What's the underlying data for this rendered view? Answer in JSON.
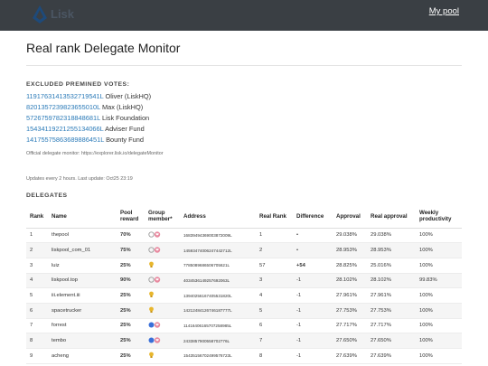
{
  "header": {
    "logo_text": "Lisk",
    "my_pool_label": "My pool"
  },
  "page_title": "Real rank Delegate Monitor",
  "excluded": {
    "heading": "EXCLUDED PREMINED VOTES:",
    "items": [
      {
        "address": "11917631413532719541L",
        "name": "Oliver (LiskHQ)"
      },
      {
        "address": "8201357239823655010L",
        "name": "Max (LiskHQ)"
      },
      {
        "address": "5726759782318848681L",
        "name": "Lisk Foundation"
      },
      {
        "address": "15434119221255134066L",
        "name": "Adviser Fund"
      },
      {
        "address": "14175575863689886451L",
        "name": "Bounty Fund"
      }
    ],
    "monitor_note": "Official delegate monitor: https://explorer.lisk.io/delegateMonitor"
  },
  "update_note": "Updates every 2 hours. Last update: Oct25 23:19",
  "delegates": {
    "heading": "DELEGATES",
    "columns": {
      "rank": "Rank",
      "name": "Name",
      "pool_reward": "Pool reward",
      "group_member": "Group member*",
      "address": "Address",
      "real_rank": "Real Rank",
      "difference": "Difference",
      "approval": "Approval",
      "real_approval": "Real approval",
      "weekly_productivity": "Weekly productivity"
    },
    "rows": [
      {
        "rank": "1",
        "name": "thepool",
        "pool_reward": "70%",
        "group": "ring-heart",
        "address": "16839494369003872009L",
        "real_rank": "1",
        "difference": "•",
        "approval": "29.038%",
        "real_approval": "29.038%",
        "productivity": "100%"
      },
      {
        "rank": "2",
        "name": "liskpool_com_01",
        "pool_reward": "75%",
        "group": "ring-heart",
        "address": "14593474006247442712L",
        "real_rank": "2",
        "difference": "•",
        "approval": "28.953%",
        "real_approval": "28.953%",
        "productivity": "100%"
      },
      {
        "rank": "3",
        "name": "luiz",
        "pool_reward": "25%",
        "group": "bulb",
        "address": "7785089686506705621L",
        "real_rank": "57",
        "difference": "+54",
        "approval": "28.825%",
        "real_approval": "25.016%",
        "productivity": "100%"
      },
      {
        "rank": "4",
        "name": "liskpool.top",
        "pool_reward": "90%",
        "group": "ring-heart",
        "address": "4034536149257692063L",
        "real_rank": "3",
        "difference": "-1",
        "approval": "28.102%",
        "real_approval": "28.102%",
        "productivity": "99.83%"
      },
      {
        "rank": "5",
        "name": "iii.element.iii",
        "pool_reward": "25%",
        "group": "bulb",
        "address": "13940256167405531820L",
        "real_rank": "4",
        "difference": "-1",
        "approval": "27.961%",
        "real_approval": "27.961%",
        "productivity": "100%"
      },
      {
        "rank": "6",
        "name": "spacetrucker",
        "pool_reward": "25%",
        "group": "bulb",
        "address": "14212484126746187777L",
        "real_rank": "5",
        "difference": "-1",
        "approval": "27.753%",
        "real_approval": "27.753%",
        "productivity": "100%"
      },
      {
        "rank": "7",
        "name": "forrest",
        "pool_reward": "25%",
        "group": "blue-heart",
        "address": "11416406165707258985L",
        "real_rank": "6",
        "difference": "-1",
        "approval": "27.717%",
        "real_approval": "27.717%",
        "productivity": "100%"
      },
      {
        "rank": "8",
        "name": "tembo",
        "pool_reward": "25%",
        "group": "blue-heart",
        "address": "2433857900558702776L",
        "real_rank": "7",
        "difference": "-1",
        "approval": "27.650%",
        "real_approval": "27.650%",
        "productivity": "100%"
      },
      {
        "rank": "9",
        "name": "acheng",
        "pool_reward": "25%",
        "group": "bulb",
        "address": "15435156702499576723L",
        "real_rank": "8",
        "difference": "-1",
        "approval": "27.639%",
        "real_approval": "27.639%",
        "productivity": "100%"
      }
    ]
  },
  "colors": {
    "topbar": "#3a3f44",
    "link": "#2a7ab8",
    "reward": "#2e9b2e",
    "diff_positive": "#d04040"
  }
}
